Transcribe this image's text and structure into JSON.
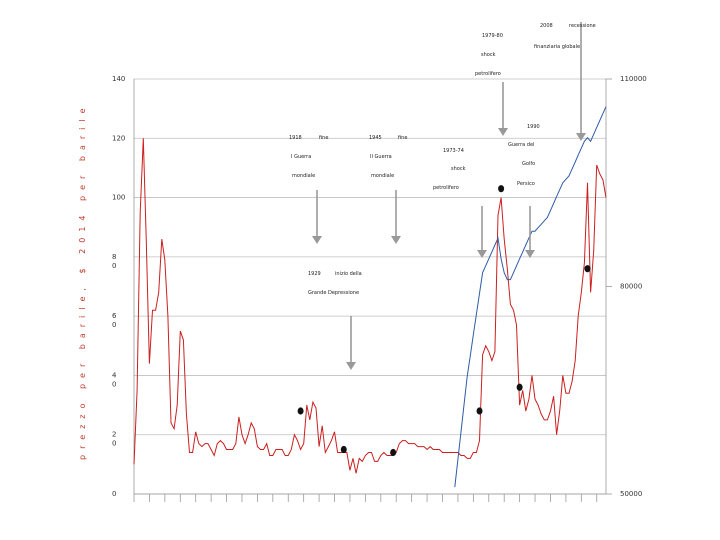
{
  "chart_data": {
    "type": "line",
    "title": "",
    "xlabel": "",
    "ylabel": "prezzo per barile, $ 2014 per barile",
    "ylim": [
      0,
      140
    ],
    "left_ticks": [
      {
        "value": 140,
        "label": "140"
      },
      {
        "value": 120,
        "label": "120"
      },
      {
        "value": 100,
        "label": "100"
      },
      {
        "value": 80,
        "label": "8\n0"
      },
      {
        "value": 60,
        "label": "6\n0"
      },
      {
        "value": 40,
        "label": "4\n0"
      },
      {
        "value": 20,
        "label": "2\n0"
      },
      {
        "value": 0,
        "label": "0"
      }
    ],
    "right_axis": {
      "range": [
        50000,
        110000
      ],
      "ticks": [
        {
          "value": 110000,
          "label": "110000"
        },
        {
          "value": 80000,
          "label": "80000"
        },
        {
          "value": 50000,
          "label": "50000"
        }
      ]
    },
    "grid": true,
    "x_range": [
      1861,
      2014
    ],
    "series": [
      {
        "color": "#cc1f1f",
        "axis": "left",
        "x": [
          1861,
          1862,
          1863,
          1864,
          1865,
          1866,
          1867,
          1868,
          1869,
          1870,
          1871,
          1872,
          1873,
          1874,
          1875,
          1876,
          1877,
          1878,
          1879,
          1880,
          1881,
          1882,
          1883,
          1884,
          1885,
          1886,
          1887,
          1888,
          1889,
          1890,
          1891,
          1892,
          1893,
          1894,
          1895,
          1896,
          1897,
          1898,
          1899,
          1900,
          1901,
          1902,
          1903,
          1904,
          1905,
          1906,
          1907,
          1908,
          1909,
          1910,
          1911,
          1912,
          1913,
          1914,
          1915,
          1916,
          1917,
          1918,
          1919,
          1920,
          1921,
          1922,
          1923,
          1924,
          1925,
          1926,
          1927,
          1928,
          1929,
          1930,
          1931,
          1932,
          1933,
          1934,
          1935,
          1936,
          1937,
          1938,
          1939,
          1940,
          1941,
          1942,
          1943,
          1944,
          1945,
          1946,
          1947,
          1948,
          1949,
          1950,
          1951,
          1952,
          1953,
          1954,
          1955,
          1956,
          1957,
          1958,
          1959,
          1960,
          1961,
          1962,
          1963,
          1964,
          1965,
          1966,
          1967,
          1968,
          1969,
          1970,
          1971,
          1972,
          1973,
          1974,
          1975,
          1976,
          1977,
          1978,
          1979,
          1980,
          1981,
          1982,
          1983,
          1984,
          1985,
          1986,
          1987,
          1988,
          1989,
          1990,
          1991,
          1992,
          1993,
          1994,
          1995,
          1996,
          1997,
          1998,
          1999,
          2000,
          2001,
          2002,
          2003,
          2004,
          2005,
          2006,
          2007,
          2008,
          2009,
          2010,
          2011,
          2012,
          2013,
          2014
        ],
        "values": [
          10,
          35,
          95,
          120,
          85,
          44,
          62,
          62,
          68,
          86,
          79,
          60,
          24,
          22,
          30,
          55,
          52,
          27,
          14,
          14,
          21,
          17,
          16,
          17,
          17,
          15,
          13,
          17,
          18,
          17,
          15,
          15,
          15,
          17,
          26,
          20,
          17,
          20,
          24,
          22,
          16,
          15,
          15,
          17,
          13,
          13,
          15,
          15,
          15,
          13,
          13,
          15,
          20,
          18,
          15,
          17,
          30,
          25,
          31,
          29,
          16,
          23,
          14,
          16,
          18,
          21,
          14,
          14,
          14,
          14,
          8,
          12,
          7,
          12,
          11,
          13,
          14,
          14,
          11,
          11,
          13,
          14,
          13,
          13,
          13,
          14,
          17,
          18,
          18,
          17,
          17,
          17,
          16,
          16,
          16,
          15,
          16,
          15,
          15,
          15,
          14,
          14,
          14,
          14,
          14,
          14,
          13,
          13,
          12,
          12,
          14,
          14,
          18,
          47,
          50,
          48,
          45,
          48,
          94,
          100,
          86,
          76,
          64,
          62,
          57,
          30,
          35,
          28,
          32,
          40,
          32,
          30,
          27,
          25,
          25,
          28,
          33,
          20,
          28,
          40,
          34,
          34,
          38,
          45,
          60,
          68,
          78,
          105,
          68,
          82,
          111,
          108,
          106,
          100
        ]
      },
      {
        "color": "#2f5aa8",
        "axis": "right",
        "x": [
          1965,
          1966,
          1967,
          1968,
          1969,
          1970,
          1971,
          1972,
          1973,
          1974,
          1975,
          1976,
          1977,
          1978,
          1979,
          1980,
          1981,
          1982,
          1983,
          1984,
          1985,
          1986,
          1987,
          1988,
          1989,
          1990,
          1991,
          1992,
          1993,
          1994,
          1995,
          1996,
          1997,
          1998,
          1999,
          2000,
          2001,
          2002,
          2003,
          2004,
          2005,
          2006,
          2007,
          2008,
          2009,
          2010,
          2011,
          2012,
          2013,
          2014
        ],
        "values": [
          51000,
          55000,
          59000,
          63000,
          67000,
          70000,
          73000,
          76000,
          79000,
          82000,
          83000,
          84000,
          85000,
          86000,
          87000,
          84000,
          82000,
          81000,
          81000,
          82000,
          83000,
          84000,
          85000,
          86000,
          87000,
          88000,
          88000,
          88500,
          89000,
          89500,
          90000,
          91000,
          92000,
          93000,
          94000,
          95000,
          95500,
          96000,
          97000,
          98000,
          99000,
          100000,
          101000,
          101500,
          101000,
          102000,
          103000,
          104000,
          105000,
          106000
        ]
      }
    ],
    "markers": [
      {
        "x": 1915,
        "y": 28
      },
      {
        "x": 1929,
        "y": 15
      },
      {
        "x": 1945,
        "y": 14
      },
      {
        "x": 1973,
        "y": 28
      },
      {
        "x": 1980,
        "y": 103
      },
      {
        "x": 1986,
        "y": 36
      },
      {
        "x": 2008,
        "y": 76
      }
    ],
    "annotations": {
      "a2008": "2008",
      "recession": "recessione",
      "finance": "finanziaria globale",
      "y7980": "1979-80",
      "shock": "shock",
      "oil": "petrolifero",
      "y1990": "1990",
      "gulf": "Guerra del",
      "gulf2": "Golfo",
      "persian": "Persico",
      "y7374": "1973-74",
      "shock2": "shock",
      "oil2": "petrolifero",
      "y1918": "1918",
      "fine1": "fine",
      "ww1": "I Guerra",
      "world1": "mondiale",
      "y1945": "1945",
      "fine2": "fine",
      "ww2": "II Guerra",
      "world2": "mondiale",
      "y1929": "1929",
      "inizio": "inizio della",
      "depression": "Grande Depressione"
    }
  }
}
